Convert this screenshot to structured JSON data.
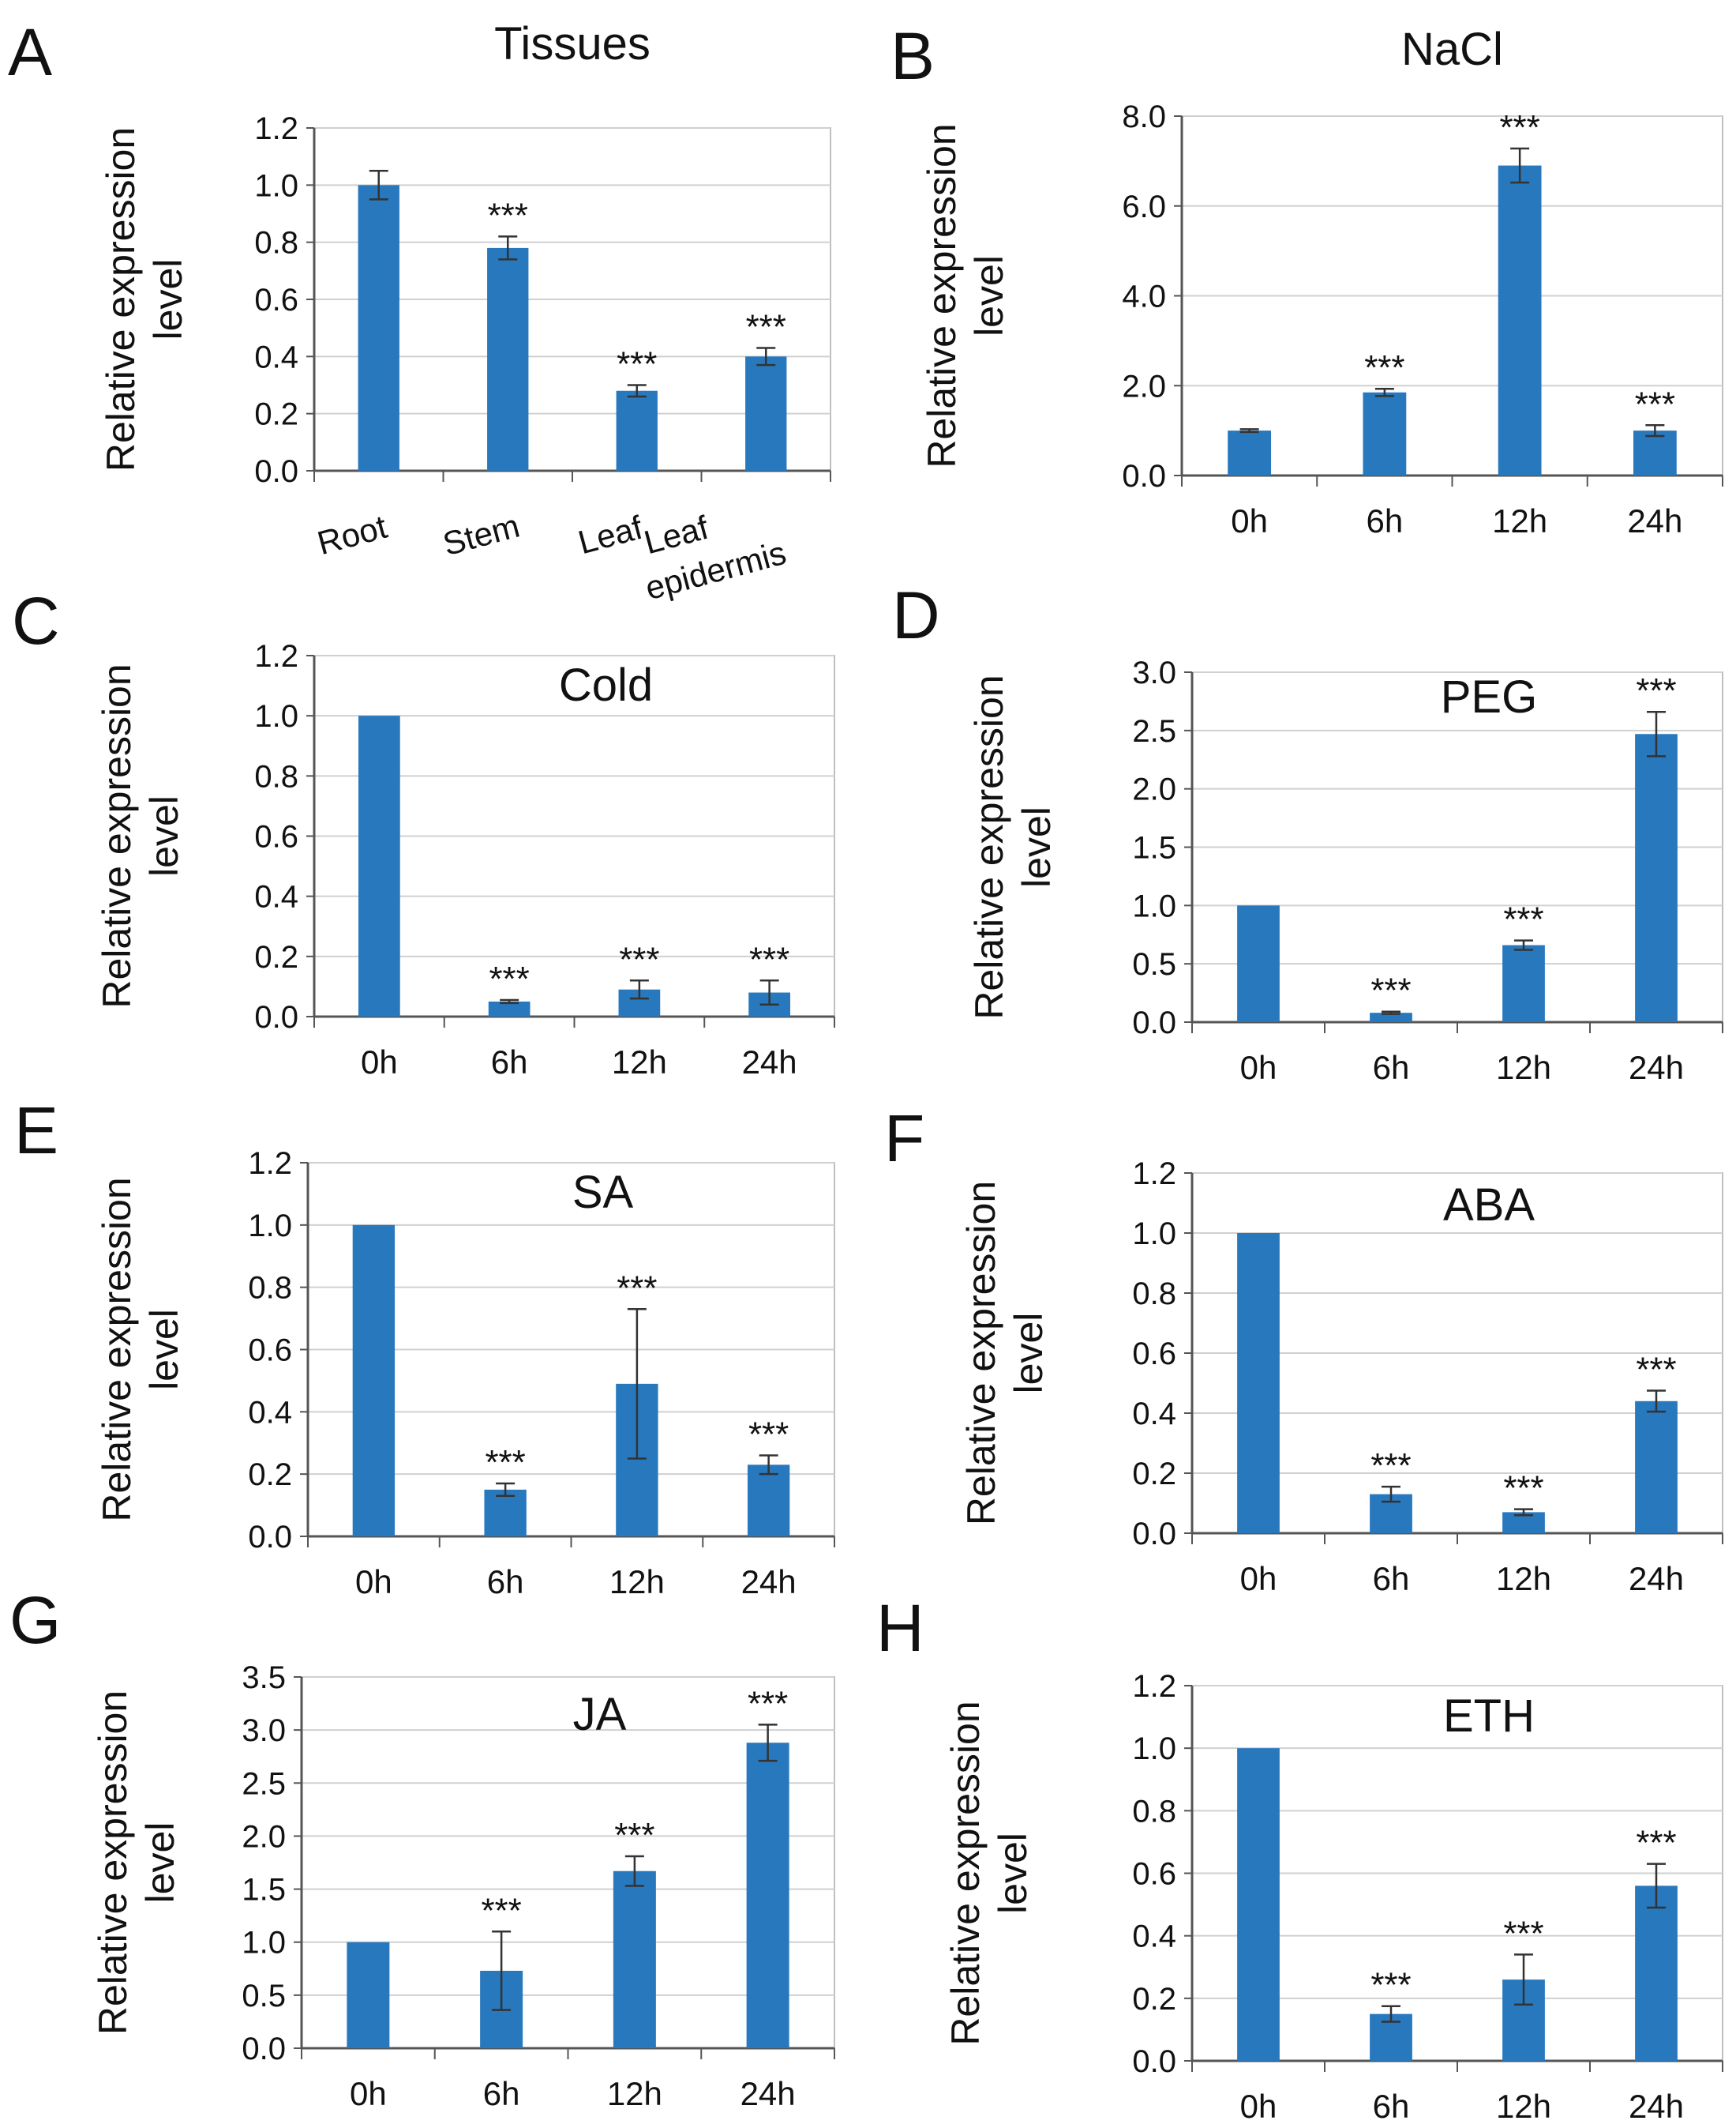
{
  "ylabel_line1": "Relative expression",
  "ylabel_line2": "level",
  "colors": {
    "bar": "#2878be",
    "grid": "#d0d0d0",
    "axis": "#555555",
    "text": "#111111"
  },
  "chart_data": [
    {
      "type": "bar",
      "panel": "A",
      "title": "Tissues",
      "title_position": "above",
      "categories": [
        "Root",
        "Stem",
        "Leaf",
        "Leaf epidermis"
      ],
      "category_labels": [
        "Root",
        "Stem",
        "Leaf",
        "epidermis"
      ],
      "values": [
        1.0,
        0.78,
        0.28,
        0.4
      ],
      "errors": [
        0.05,
        0.04,
        0.02,
        0.03
      ],
      "significance": [
        "",
        "***",
        "***",
        "***"
      ],
      "ylim": [
        0,
        1.2
      ],
      "yticks": [
        "0.0",
        "0.2",
        "0.4",
        "0.6",
        "0.8",
        "1.0",
        "1.2"
      ],
      "ylabel": "Relative expression level"
    },
    {
      "type": "bar",
      "panel": "B",
      "title": "NaCl",
      "title_position": "above",
      "categories": [
        "0h",
        "6h",
        "12h",
        "24h"
      ],
      "values": [
        1.0,
        1.85,
        6.9,
        1.0
      ],
      "errors": [
        0.03,
        0.08,
        0.38,
        0.12
      ],
      "significance": [
        "",
        "***",
        "***",
        "***"
      ],
      "ylim": [
        0,
        8.0
      ],
      "yticks": [
        "0.0",
        "2.0",
        "4.0",
        "6.0",
        "8.0"
      ],
      "ylabel": "Relative expression level"
    },
    {
      "type": "bar",
      "panel": "C",
      "title": "Cold",
      "title_position": "inside",
      "categories": [
        "0h",
        "6h",
        "12h",
        "24h"
      ],
      "values": [
        1.0,
        0.05,
        0.09,
        0.08
      ],
      "errors": [
        0.0,
        0.005,
        0.03,
        0.04
      ],
      "significance": [
        "",
        "***",
        "***",
        "***"
      ],
      "ylim": [
        0,
        1.2
      ],
      "yticks": [
        "0.0",
        "0.2",
        "0.4",
        "0.6",
        "0.8",
        "1.0",
        "1.2"
      ],
      "ylabel": "Relative expression level"
    },
    {
      "type": "bar",
      "panel": "D",
      "title": "PEG",
      "title_position": "inside",
      "categories": [
        "0h",
        "6h",
        "12h",
        "24h"
      ],
      "values": [
        1.0,
        0.08,
        0.66,
        2.47
      ],
      "errors": [
        0.0,
        0.01,
        0.04,
        0.19
      ],
      "significance": [
        "",
        "***",
        "***",
        "***"
      ],
      "ylim": [
        0,
        3.0
      ],
      "yticks": [
        "0.0",
        "0.5",
        "1.0",
        "1.5",
        "2.0",
        "2.5",
        "3.0"
      ],
      "ylabel": "Relative expression level"
    },
    {
      "type": "bar",
      "panel": "E",
      "title": "SA",
      "title_position": "inside",
      "categories": [
        "0h",
        "6h",
        "12h",
        "24h"
      ],
      "values": [
        1.0,
        0.15,
        0.49,
        0.23
      ],
      "errors": [
        0.0,
        0.02,
        0.24,
        0.03
      ],
      "significance": [
        "",
        "***",
        "***",
        "***"
      ],
      "ylim": [
        0,
        1.2
      ],
      "yticks": [
        "0.0",
        "0.2",
        "0.4",
        "0.6",
        "0.8",
        "1.0",
        "1.2"
      ],
      "ylabel": "Relative expression level"
    },
    {
      "type": "bar",
      "panel": "F",
      "title": "ABA",
      "title_position": "inside",
      "categories": [
        "0h",
        "6h",
        "12h",
        "24h"
      ],
      "values": [
        1.0,
        0.13,
        0.07,
        0.44
      ],
      "errors": [
        0.0,
        0.025,
        0.01,
        0.035
      ],
      "significance": [
        "",
        "***",
        "***",
        "***"
      ],
      "ylim": [
        0,
        1.2
      ],
      "yticks": [
        "0.0",
        "0.2",
        "0.4",
        "0.6",
        "0.8",
        "1.0",
        "1.2"
      ],
      "ylabel": "Relative expression level"
    },
    {
      "type": "bar",
      "panel": "G",
      "title": "JA",
      "title_position": "inside",
      "categories": [
        "0h",
        "6h",
        "12h",
        "24h"
      ],
      "values": [
        1.0,
        0.73,
        1.67,
        2.88
      ],
      "errors": [
        0.0,
        0.37,
        0.14,
        0.17
      ],
      "significance": [
        "",
        "***",
        "***",
        "***"
      ],
      "ylim": [
        0,
        3.5
      ],
      "yticks": [
        "0.0",
        "0.5",
        "1.0",
        "1.5",
        "2.0",
        "2.5",
        "3.0",
        "3.5"
      ],
      "ylabel": "Relative expression level"
    },
    {
      "type": "bar",
      "panel": "H",
      "title": "ETH",
      "title_position": "inside",
      "categories": [
        "0h",
        "6h",
        "12h",
        "24h"
      ],
      "values": [
        1.0,
        0.15,
        0.26,
        0.56
      ],
      "errors": [
        0.0,
        0.025,
        0.08,
        0.07
      ],
      "significance": [
        "",
        "***",
        "***",
        "***"
      ],
      "ylim": [
        0,
        1.2
      ],
      "yticks": [
        "0.0",
        "0.2",
        "0.4",
        "0.6",
        "0.8",
        "1.0",
        "1.2"
      ],
      "ylabel": "Relative expression level"
    }
  ]
}
